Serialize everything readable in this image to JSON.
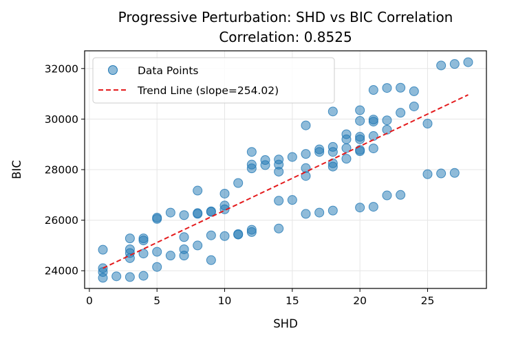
{
  "chart_data": {
    "type": "scatter",
    "title": "Progressive Perturbation: SHD vs BIC Correlation",
    "subtitle": "Correlation: 0.8525",
    "xlabel": "SHD",
    "ylabel": "BIC",
    "xlim": [
      -0.35,
      29.35
    ],
    "ylim": [
      23300,
      32700
    ],
    "xticks": [
      0,
      5,
      10,
      15,
      20,
      25
    ],
    "yticks": [
      24000,
      26000,
      28000,
      30000,
      32000
    ],
    "grid": true,
    "legend": {
      "position": "top-left",
      "entries": [
        "Data Points",
        "Trend Line (slope=254.02)"
      ]
    },
    "series": [
      {
        "name": "Data Points",
        "color": "#1f77b4",
        "points": [
          [
            1,
            24830
          ],
          [
            1,
            24100
          ],
          [
            1,
            23950
          ],
          [
            1,
            23720
          ],
          [
            2,
            23780
          ],
          [
            3,
            25280
          ],
          [
            3,
            24850
          ],
          [
            3,
            24700
          ],
          [
            3,
            24500
          ],
          [
            3,
            23750
          ],
          [
            4,
            25280
          ],
          [
            4,
            25200
          ],
          [
            4,
            24680
          ],
          [
            4,
            23800
          ],
          [
            5,
            26100
          ],
          [
            5,
            26050
          ],
          [
            5,
            24750
          ],
          [
            5,
            24150
          ],
          [
            6,
            26300
          ],
          [
            6,
            24600
          ],
          [
            7,
            26200
          ],
          [
            7,
            25330
          ],
          [
            7,
            24850
          ],
          [
            7,
            24600
          ],
          [
            8,
            27170
          ],
          [
            8,
            26280
          ],
          [
            8,
            26250
          ],
          [
            8,
            25000
          ],
          [
            9,
            26350
          ],
          [
            9,
            26330
          ],
          [
            9,
            25400
          ],
          [
            9,
            24420
          ],
          [
            10,
            27050
          ],
          [
            10,
            26580
          ],
          [
            10,
            26430
          ],
          [
            10,
            25370
          ],
          [
            11,
            27470
          ],
          [
            11,
            25450
          ],
          [
            11,
            25430
          ],
          [
            12,
            28700
          ],
          [
            12,
            28200
          ],
          [
            12,
            28050
          ],
          [
            12,
            25620
          ],
          [
            12,
            25530
          ],
          [
            13,
            28380
          ],
          [
            13,
            28180
          ],
          [
            14,
            28400
          ],
          [
            14,
            28200
          ],
          [
            14,
            27920
          ],
          [
            14,
            26770
          ],
          [
            14,
            25670
          ],
          [
            15,
            28500
          ],
          [
            15,
            26800
          ],
          [
            16,
            29750
          ],
          [
            16,
            28620
          ],
          [
            16,
            28060
          ],
          [
            16,
            27750
          ],
          [
            16,
            26250
          ],
          [
            17,
            28800
          ],
          [
            17,
            28700
          ],
          [
            17,
            26300
          ],
          [
            18,
            30300
          ],
          [
            18,
            28900
          ],
          [
            18,
            28700
          ],
          [
            18,
            28250
          ],
          [
            18,
            28120
          ],
          [
            18,
            26380
          ],
          [
            19,
            29400
          ],
          [
            19,
            29200
          ],
          [
            19,
            28850
          ],
          [
            19,
            28430
          ],
          [
            20,
            30350
          ],
          [
            20,
            29930
          ],
          [
            20,
            29300
          ],
          [
            20,
            29200
          ],
          [
            20,
            28780
          ],
          [
            20,
            28730
          ],
          [
            20,
            26500
          ],
          [
            21,
            31150
          ],
          [
            21,
            29980
          ],
          [
            21,
            29900
          ],
          [
            21,
            29330
          ],
          [
            21,
            28840
          ],
          [
            21,
            26530
          ],
          [
            22,
            31230
          ],
          [
            22,
            29950
          ],
          [
            22,
            29580
          ],
          [
            22,
            26980
          ],
          [
            23,
            31240
          ],
          [
            23,
            30250
          ],
          [
            23,
            27000
          ],
          [
            24,
            31100
          ],
          [
            24,
            30500
          ],
          [
            25,
            29820
          ],
          [
            25,
            27820
          ],
          [
            26,
            32120
          ],
          [
            26,
            27850
          ],
          [
            27,
            32180
          ],
          [
            27,
            27870
          ],
          [
            28,
            32250
          ]
        ]
      },
      {
        "name": "Trend Line (slope=254.02)",
        "type": "line",
        "style": "dashed",
        "color": "#e41a1c",
        "x": [
          1,
          28
        ],
        "y": [
          24100,
          30959
        ]
      }
    ]
  }
}
